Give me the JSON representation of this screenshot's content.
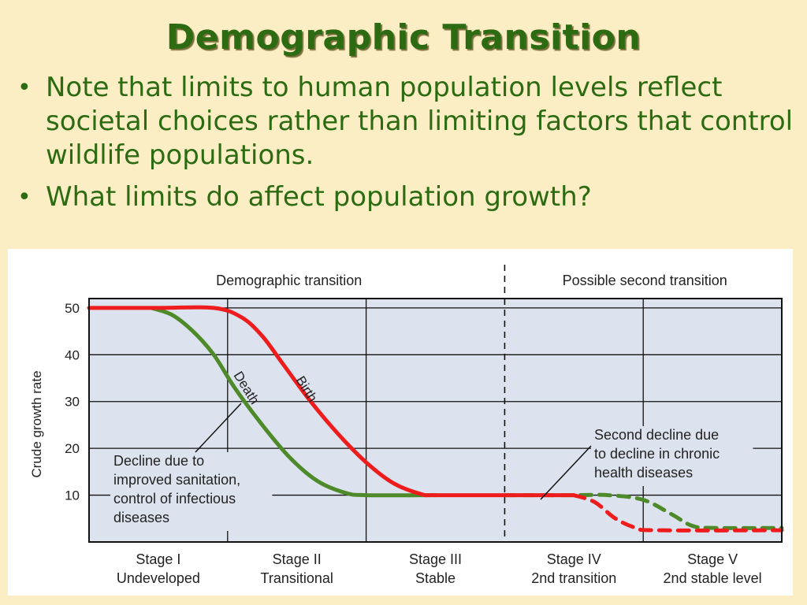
{
  "slide": {
    "title": "Demographic Transition",
    "bullets": [
      "Note that limits to human population levels reflect societal choices rather than limiting factors that control wildlife populations.",
      "What limits do affect population growth?"
    ]
  },
  "colors": {
    "background": "#fbeec4",
    "title_green": "#2d6b12",
    "plot_area": "#dde3ee",
    "birth_red": "#ee1c1c",
    "death_green": "#4e8a2a"
  },
  "chart_data": {
    "type": "line",
    "title": "",
    "section_labels": [
      "Demographic transition",
      "Possible second transition"
    ],
    "ylabel": "Crude growth rate",
    "yticks": [
      10,
      20,
      30,
      40,
      50
    ],
    "ylim": [
      0,
      52
    ],
    "stages": [
      {
        "name": "Stage I",
        "sub": "Undeveloped"
      },
      {
        "name": "Stage II",
        "sub": "Transitional"
      },
      {
        "name": "Stage III",
        "sub": "Stable"
      },
      {
        "name": "Stage IV",
        "sub": "2nd transition"
      },
      {
        "name": "Stage V",
        "sub": "2nd stable level"
      }
    ],
    "xlim": [
      0,
      5
    ],
    "grid": true,
    "series": [
      {
        "name": "Birth",
        "color": "#ee1c1c",
        "style": "solid",
        "points": [
          [
            0,
            50
          ],
          [
            0.5,
            50
          ],
          [
            0.9,
            50
          ],
          [
            1.1,
            48
          ],
          [
            1.25,
            44
          ],
          [
            1.4,
            38
          ],
          [
            1.6,
            30
          ],
          [
            1.8,
            23
          ],
          [
            2.0,
            17
          ],
          [
            2.2,
            12.5
          ],
          [
            2.4,
            10.2
          ],
          [
            2.5,
            10
          ],
          [
            3.0,
            10
          ],
          [
            3.5,
            10
          ]
        ]
      },
      {
        "name": "Birth",
        "color": "#ee1c1c",
        "style": "dashed",
        "points": [
          [
            3.5,
            10
          ],
          [
            3.65,
            8.5
          ],
          [
            3.8,
            5
          ],
          [
            3.95,
            3
          ],
          [
            4.1,
            2.5
          ],
          [
            5.0,
            2.5
          ]
        ]
      },
      {
        "name": "Death",
        "color": "#4e8a2a",
        "style": "solid",
        "points": [
          [
            0.45,
            50
          ],
          [
            0.6,
            48.5
          ],
          [
            0.75,
            45
          ],
          [
            0.9,
            40
          ],
          [
            1.05,
            33
          ],
          [
            1.25,
            25
          ],
          [
            1.45,
            18
          ],
          [
            1.65,
            13
          ],
          [
            1.85,
            10.5
          ],
          [
            2.0,
            10
          ],
          [
            2.5,
            10
          ]
        ]
      },
      {
        "name": "Death",
        "color": "#4e8a2a",
        "style": "dashed",
        "points": [
          [
            3.0,
            10
          ],
          [
            3.5,
            10
          ],
          [
            3.75,
            10
          ],
          [
            4.0,
            9
          ],
          [
            4.2,
            6
          ],
          [
            4.35,
            3.5
          ],
          [
            4.5,
            3
          ],
          [
            5.0,
            3
          ]
        ]
      }
    ],
    "annotations": [
      {
        "text": [
          "Decline due to",
          "improved sanitation,",
          "control of infectious",
          "diseases"
        ]
      },
      {
        "text": [
          "Second decline due",
          "to decline in chronic",
          "health diseases"
        ]
      }
    ]
  }
}
